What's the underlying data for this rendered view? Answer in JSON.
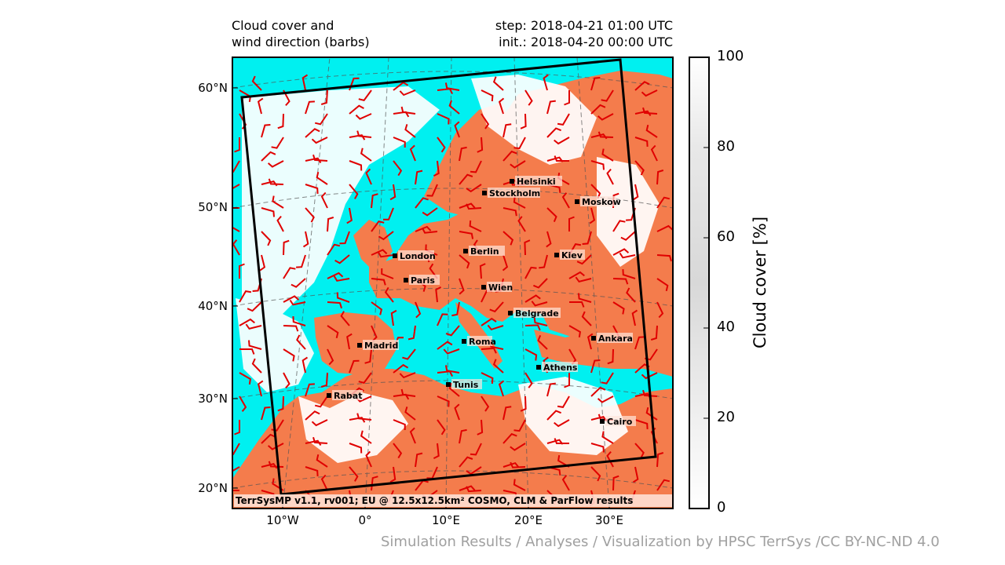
{
  "header": {
    "title_left": "Cloud cover and\nwind direction (barbs)",
    "step": "step: 2018-04-21 01:00 UTC",
    "init": "init.: 2018-04-20 00:00 UTC"
  },
  "map": {
    "lat_labels": [
      "60°N",
      "50°N",
      "40°N",
      "30°N",
      "20°N"
    ],
    "lon_labels": [
      "10°W",
      "0°",
      "10°E",
      "20°E",
      "30°E"
    ],
    "cities": [
      {
        "name": "Helsinki"
      },
      {
        "name": "Stockholm"
      },
      {
        "name": "Moskow"
      },
      {
        "name": "London"
      },
      {
        "name": "Berlin"
      },
      {
        "name": "Kiev"
      },
      {
        "name": "Paris"
      },
      {
        "name": "Wien"
      },
      {
        "name": "Belgrade"
      },
      {
        "name": "Madrid"
      },
      {
        "name": "Roma"
      },
      {
        "name": "Ankara"
      },
      {
        "name": "Athens"
      },
      {
        "name": "Tunis"
      },
      {
        "name": "Rabat"
      },
      {
        "name": "Cairo"
      }
    ],
    "footer_text": "TerrSysMP v1.1, rv001; EU @ 12.5x12.5km² COSMO, CLM & ParFlow results",
    "colors": {
      "sea": "#00f0f0",
      "land": "#f47c4c",
      "barbs": "#e00000",
      "domain": "#000000"
    }
  },
  "colorbar": {
    "label": "Cloud cover [%]",
    "ticks": [
      "100",
      "80",
      "60",
      "40",
      "20",
      "0"
    ]
  },
  "credit": "Simulation Results / Analyses / Visualization by HPSC TerrSys /CC BY-NC-ND 4.0"
}
